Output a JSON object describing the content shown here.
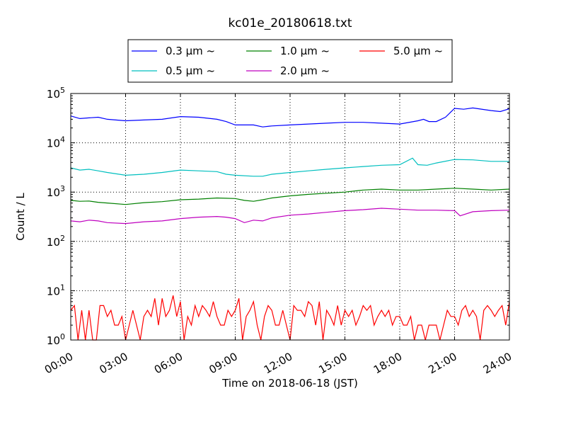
{
  "chart_data": {
    "type": "line",
    "title": "kc01e_20180618.txt",
    "xlabel": "Time on 2018-06-18 (JST)",
    "ylabel": "Count / L",
    "yscale": "log",
    "xlim": [
      0,
      24
    ],
    "ylim": [
      1,
      100000
    ],
    "x_ticks": [
      0,
      3,
      6,
      9,
      12,
      15,
      18,
      21,
      24
    ],
    "x_tick_labels": [
      "00:00",
      "03:00",
      "06:00",
      "09:00",
      "12:00",
      "15:00",
      "18:00",
      "21:00",
      "24:00"
    ],
    "y_ticks": [
      1,
      10,
      100,
      1000,
      10000,
      100000
    ],
    "y_tick_labels": [
      {
        "base": "10",
        "exp": "0"
      },
      {
        "base": "10",
        "exp": "1"
      },
      {
        "base": "10",
        "exp": "2"
      },
      {
        "base": "10",
        "exp": "3"
      },
      {
        "base": "10",
        "exp": "4"
      },
      {
        "base": "10",
        "exp": "5"
      }
    ],
    "grid": true,
    "legend_position": "top-center",
    "series": [
      {
        "name": "0.3 μm ~",
        "color": "#0000ff",
        "points": [
          [
            0,
            35000
          ],
          [
            0.5,
            31000
          ],
          [
            1,
            32000
          ],
          [
            1.5,
            33000
          ],
          [
            2,
            30000
          ],
          [
            3,
            28000
          ],
          [
            4,
            29000
          ],
          [
            5,
            30000
          ],
          [
            6,
            34000
          ],
          [
            7,
            33000
          ],
          [
            8,
            30000
          ],
          [
            8.5,
            27000
          ],
          [
            9,
            23000
          ],
          [
            10,
            23000
          ],
          [
            10.5,
            21000
          ],
          [
            11,
            22000
          ],
          [
            12,
            23000
          ],
          [
            13,
            24000
          ],
          [
            14,
            25000
          ],
          [
            15,
            26000
          ],
          [
            16,
            26000
          ],
          [
            17,
            25000
          ],
          [
            18,
            24000
          ],
          [
            19,
            28000
          ],
          [
            19.3,
            30000
          ],
          [
            19.6,
            27000
          ],
          [
            20,
            27000
          ],
          [
            20.5,
            33000
          ],
          [
            21,
            50000
          ],
          [
            21.5,
            48000
          ],
          [
            22,
            51000
          ],
          [
            23,
            45000
          ],
          [
            23.5,
            43000
          ],
          [
            24,
            49000
          ]
        ]
      },
      {
        "name": "0.5 μm ~",
        "color": "#00bfbf",
        "points": [
          [
            0,
            3100
          ],
          [
            0.5,
            2800
          ],
          [
            1,
            2900
          ],
          [
            1.5,
            2700
          ],
          [
            2,
            2500
          ],
          [
            3,
            2200
          ],
          [
            4,
            2300
          ],
          [
            5,
            2500
          ],
          [
            6,
            2800
          ],
          [
            7,
            2700
          ],
          [
            8,
            2600
          ],
          [
            8.5,
            2300
          ],
          [
            9,
            2200
          ],
          [
            10,
            2100
          ],
          [
            10.5,
            2100
          ],
          [
            11,
            2300
          ],
          [
            12,
            2500
          ],
          [
            13,
            2700
          ],
          [
            14,
            2900
          ],
          [
            15,
            3100
          ],
          [
            16,
            3300
          ],
          [
            17,
            3500
          ],
          [
            18,
            3600
          ],
          [
            18.7,
            4900
          ],
          [
            19,
            3600
          ],
          [
            19.5,
            3500
          ],
          [
            20,
            3900
          ],
          [
            21,
            4600
          ],
          [
            22,
            4500
          ],
          [
            23,
            4200
          ],
          [
            24,
            4200
          ]
        ]
      },
      {
        "name": "1.0 μm ~",
        "color": "#008000",
        "points": [
          [
            0,
            680
          ],
          [
            0.5,
            650
          ],
          [
            1,
            660
          ],
          [
            1.5,
            620
          ],
          [
            2,
            600
          ],
          [
            3,
            560
          ],
          [
            4,
            610
          ],
          [
            5,
            640
          ],
          [
            6,
            700
          ],
          [
            7,
            720
          ],
          [
            8,
            760
          ],
          [
            8.5,
            750
          ],
          [
            9,
            740
          ],
          [
            9.5,
            680
          ],
          [
            10,
            650
          ],
          [
            10.5,
            700
          ],
          [
            11,
            760
          ],
          [
            12,
            840
          ],
          [
            13,
            900
          ],
          [
            14,
            950
          ],
          [
            15,
            1000
          ],
          [
            16,
            1100
          ],
          [
            17,
            1150
          ],
          [
            18,
            1100
          ],
          [
            19,
            1100
          ],
          [
            20,
            1150
          ],
          [
            21,
            1200
          ],
          [
            22,
            1150
          ],
          [
            23,
            1100
          ],
          [
            24,
            1150
          ]
        ]
      },
      {
        "name": "2.0 μm ~",
        "color": "#bf00bf",
        "points": [
          [
            0,
            260
          ],
          [
            0.5,
            250
          ],
          [
            1,
            270
          ],
          [
            1.5,
            260
          ],
          [
            2,
            240
          ],
          [
            3,
            230
          ],
          [
            4,
            250
          ],
          [
            5,
            260
          ],
          [
            6,
            290
          ],
          [
            7,
            310
          ],
          [
            8,
            320
          ],
          [
            8.5,
            310
          ],
          [
            9,
            290
          ],
          [
            9.5,
            240
          ],
          [
            10,
            270
          ],
          [
            10.5,
            260
          ],
          [
            11,
            300
          ],
          [
            12,
            340
          ],
          [
            13,
            360
          ],
          [
            14,
            390
          ],
          [
            15,
            420
          ],
          [
            16,
            440
          ],
          [
            17,
            470
          ],
          [
            18,
            450
          ],
          [
            19,
            430
          ],
          [
            20,
            430
          ],
          [
            21,
            420
          ],
          [
            21.3,
            330
          ],
          [
            22,
            400
          ],
          [
            23,
            420
          ],
          [
            24,
            430
          ]
        ]
      },
      {
        "name": "5.0 μm ~",
        "color": "#ff0000",
        "points": [
          [
            0,
            4
          ],
          [
            0.2,
            5
          ],
          [
            0.4,
            1
          ],
          [
            0.6,
            4
          ],
          [
            0.8,
            1
          ],
          [
            1,
            4
          ],
          [
            1.2,
            1
          ],
          [
            1.4,
            1
          ],
          [
            1.6,
            5
          ],
          [
            1.8,
            5
          ],
          [
            2,
            3
          ],
          [
            2.2,
            4
          ],
          [
            2.4,
            2
          ],
          [
            2.6,
            2
          ],
          [
            2.8,
            3
          ],
          [
            3,
            1
          ],
          [
            3.2,
            2
          ],
          [
            3.4,
            4
          ],
          [
            3.6,
            2
          ],
          [
            3.8,
            1
          ],
          [
            4,
            3
          ],
          [
            4.2,
            4
          ],
          [
            4.4,
            3
          ],
          [
            4.6,
            7
          ],
          [
            4.8,
            2
          ],
          [
            5,
            7
          ],
          [
            5.2,
            3
          ],
          [
            5.4,
            4
          ],
          [
            5.6,
            8
          ],
          [
            5.8,
            3
          ],
          [
            6,
            6
          ],
          [
            6.2,
            1
          ],
          [
            6.4,
            3
          ],
          [
            6.6,
            2
          ],
          [
            6.8,
            5
          ],
          [
            7,
            3
          ],
          [
            7.2,
            5
          ],
          [
            7.4,
            4
          ],
          [
            7.6,
            3
          ],
          [
            7.8,
            6
          ],
          [
            8,
            3
          ],
          [
            8.2,
            2
          ],
          [
            8.4,
            2
          ],
          [
            8.6,
            4
          ],
          [
            8.8,
            3
          ],
          [
            9,
            4
          ],
          [
            9.2,
            7
          ],
          [
            9.4,
            1
          ],
          [
            9.6,
            3
          ],
          [
            9.8,
            4
          ],
          [
            10,
            6
          ],
          [
            10.2,
            2
          ],
          [
            10.4,
            1
          ],
          [
            10.6,
            3
          ],
          [
            10.8,
            5
          ],
          [
            11,
            4
          ],
          [
            11.2,
            2
          ],
          [
            11.4,
            2
          ],
          [
            11.6,
            4
          ],
          [
            11.8,
            2
          ],
          [
            12,
            1
          ],
          [
            12.2,
            5
          ],
          [
            12.4,
            4
          ],
          [
            12.6,
            4
          ],
          [
            12.8,
            3
          ],
          [
            13,
            6
          ],
          [
            13.2,
            5
          ],
          [
            13.4,
            2
          ],
          [
            13.6,
            6
          ],
          [
            13.8,
            1
          ],
          [
            14,
            4
          ],
          [
            14.2,
            3
          ],
          [
            14.4,
            2
          ],
          [
            14.6,
            5
          ],
          [
            14.8,
            2
          ],
          [
            15,
            4
          ],
          [
            15.2,
            3
          ],
          [
            15.4,
            4
          ],
          [
            15.6,
            2
          ],
          [
            15.8,
            3
          ],
          [
            16,
            5
          ],
          [
            16.2,
            4
          ],
          [
            16.4,
            5
          ],
          [
            16.6,
            2
          ],
          [
            16.8,
            3
          ],
          [
            17,
            4
          ],
          [
            17.2,
            3
          ],
          [
            17.4,
            4
          ],
          [
            17.6,
            2
          ],
          [
            17.8,
            3
          ],
          [
            18,
            3
          ],
          [
            18.2,
            2
          ],
          [
            18.4,
            2
          ],
          [
            18.6,
            3
          ],
          [
            18.8,
            1
          ],
          [
            19,
            2
          ],
          [
            19.2,
            2
          ],
          [
            19.4,
            1
          ],
          [
            19.6,
            2
          ],
          [
            19.8,
            2
          ],
          [
            20,
            2
          ],
          [
            20.2,
            1
          ],
          [
            20.4,
            2
          ],
          [
            20.6,
            4
          ],
          [
            20.8,
            3
          ],
          [
            21,
            3
          ],
          [
            21.2,
            2
          ],
          [
            21.4,
            4
          ],
          [
            21.6,
            5
          ],
          [
            21.8,
            3
          ],
          [
            22,
            4
          ],
          [
            22.2,
            3
          ],
          [
            22.4,
            1
          ],
          [
            22.6,
            4
          ],
          [
            22.8,
            5
          ],
          [
            23,
            4
          ],
          [
            23.2,
            3
          ],
          [
            23.4,
            4
          ],
          [
            23.6,
            5
          ],
          [
            23.8,
            2
          ],
          [
            24,
            6
          ]
        ]
      }
    ]
  }
}
